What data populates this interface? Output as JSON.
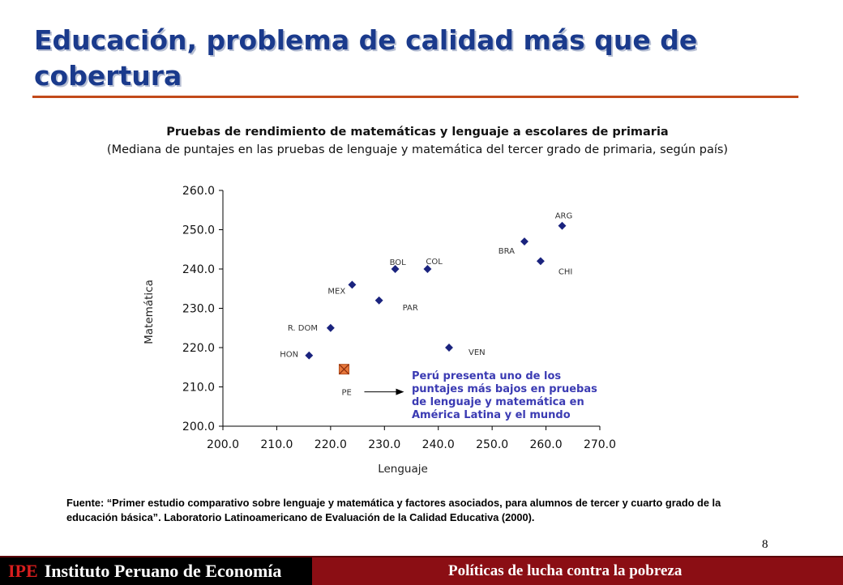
{
  "slide": {
    "title": "Educación, problema de calidad más que de cobertura",
    "page_number": "8",
    "source": "Fuente: “Primer estudio comparativo sobre lenguaje y matemática y factores asociados, para alumnos de tercer y cuarto grado de la educación básica”. Laboratorio Latinoamericano de Evaluación de la Calidad Educativa (2000)."
  },
  "footer": {
    "abbr": "IPE",
    "name": "Instituto Peruano de Economía",
    "topic": "Políticas de lucha contra la pobreza",
    "bar_color": "#8b0e14"
  },
  "chart_data": {
    "type": "scatter",
    "title": "Pruebas de rendimiento de matemáticas y lenguaje a escolares de primaria",
    "subtitle": "(Mediana de puntajes en las pruebas de lenguaje y matemática del tercer grado de primaria, según país)",
    "xlabel": "Lenguaje",
    "ylabel": "Matemática",
    "xlim": [
      200,
      270
    ],
    "ylim": [
      200,
      260
    ],
    "xticks": [
      "200.0",
      "210.0",
      "220.0",
      "230.0",
      "240.0",
      "250.0",
      "260.0",
      "270.0"
    ],
    "yticks": [
      "200.0",
      "210.0",
      "220.0",
      "230.0",
      "240.0",
      "250.0",
      "260.0"
    ],
    "marker_color": "#1a237e",
    "highlight_color": "#e8773a",
    "points": [
      {
        "label": "ARG",
        "x": 263,
        "y": 251,
        "highlight": false
      },
      {
        "label": "BRA",
        "x": 256,
        "y": 247,
        "highlight": false
      },
      {
        "label": "CHI",
        "x": 259,
        "y": 242,
        "highlight": false
      },
      {
        "label": "COL",
        "x": 238,
        "y": 240,
        "highlight": false
      },
      {
        "label": "BOL",
        "x": 232,
        "y": 240,
        "highlight": false
      },
      {
        "label": "MEX",
        "x": 224,
        "y": 236,
        "highlight": false
      },
      {
        "label": "PAR",
        "x": 229,
        "y": 232,
        "highlight": false
      },
      {
        "label": "R. DOM",
        "x": 220,
        "y": 225,
        "highlight": false
      },
      {
        "label": "VEN",
        "x": 242,
        "y": 220,
        "highlight": false
      },
      {
        "label": "HON",
        "x": 216,
        "y": 218,
        "highlight": false
      },
      {
        "label": "PE",
        "x": 222.5,
        "y": 214.5,
        "highlight": true
      }
    ],
    "annotation": {
      "text": "Perú presenta uno de los puntajes más bajos en pruebas de lenguaje y matemática en América Latina y el mundo",
      "color": "#3b3bb3",
      "lines": [
        "Perú presenta uno de los",
        "puntajes más bajos en pruebas",
        "de lenguaje y matemática en",
        "América Latina y el mundo"
      ]
    }
  }
}
